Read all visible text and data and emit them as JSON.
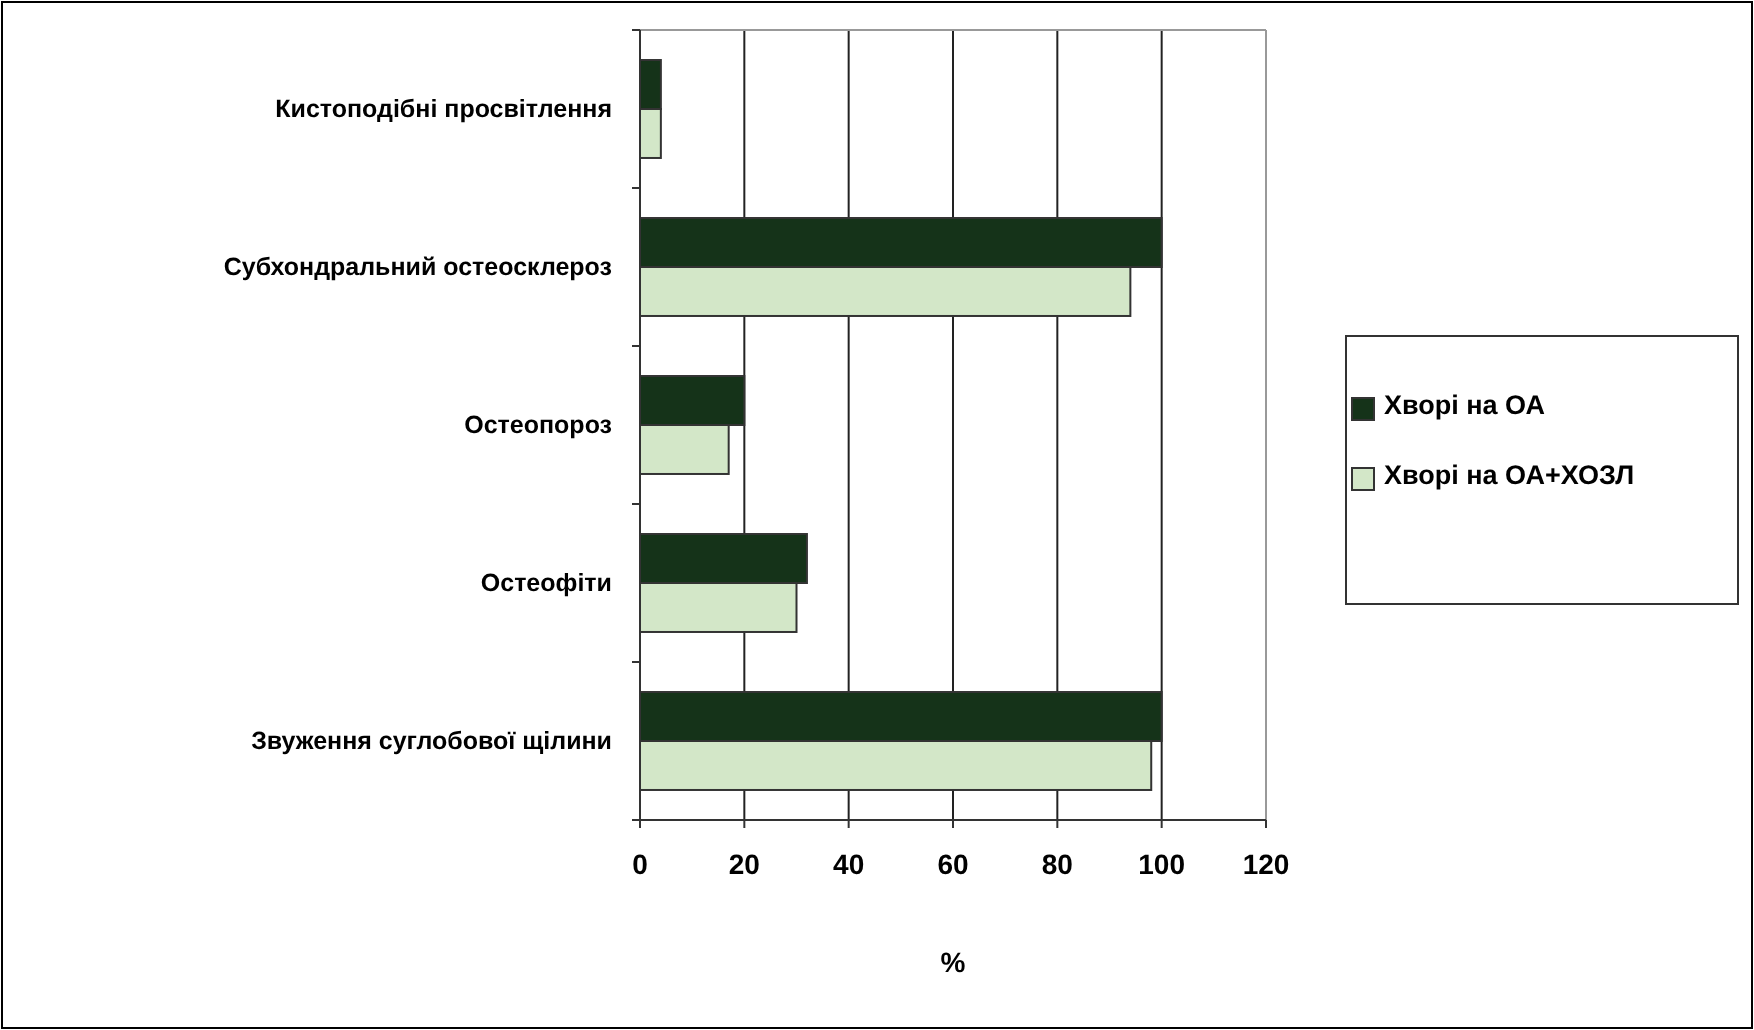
{
  "chart_data": {
    "type": "bar",
    "orientation": "horizontal",
    "xlabel": "%",
    "categories": [
      "Кистоподібні просвітлення",
      "Субхондральний остеосклероз",
      "Остеопороз",
      "Остеофіти",
      "Звуження суглобової щілини"
    ],
    "series": [
      {
        "name": "Хворі на ОА",
        "color": "#153319",
        "values": [
          4,
          100,
          20,
          32,
          100
        ]
      },
      {
        "name": "Хворі на ОА+ХОЗЛ",
        "color": "#d3e7c8",
        "values": [
          4,
          94,
          17,
          30,
          98
        ]
      }
    ],
    "xlim": [
      0,
      120
    ],
    "xticks": [
      0,
      20,
      40,
      60,
      80,
      100,
      120
    ],
    "grid": "x",
    "legend": "right"
  }
}
